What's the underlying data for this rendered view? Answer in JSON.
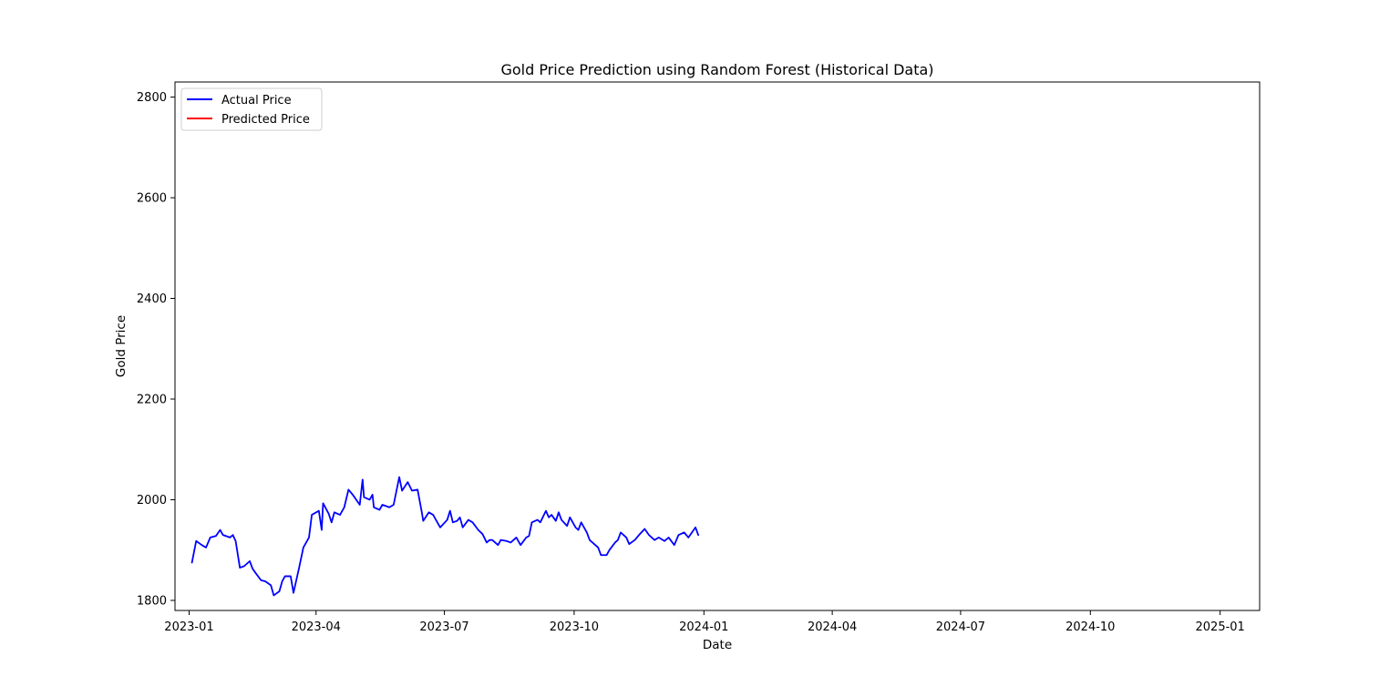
{
  "chart_data": {
    "type": "line",
    "title": "Gold Price Prediction using Random Forest (Historical Data)",
    "xlabel": "Date",
    "ylabel": "Gold Price",
    "xlim": [
      "2022-12-22",
      "2025-01-29"
    ],
    "ylim": [
      1780,
      2830
    ],
    "x_ticks": [
      {
        "date": "2023-01-01",
        "label": "2023-01"
      },
      {
        "date": "2023-04-01",
        "label": "2023-04"
      },
      {
        "date": "2023-07-01",
        "label": "2023-07"
      },
      {
        "date": "2023-10-01",
        "label": "2023-10"
      },
      {
        "date": "2024-01-01",
        "label": "2024-01"
      },
      {
        "date": "2024-04-01",
        "label": "2024-04"
      },
      {
        "date": "2024-07-01",
        "label": "2024-07"
      },
      {
        "date": "2024-10-01",
        "label": "2024-10"
      },
      {
        "date": "2025-01-01",
        "label": "2025-01"
      }
    ],
    "y_ticks": [
      1800,
      2000,
      2200,
      2400,
      2600,
      2800
    ],
    "grid": false,
    "legend_position": "upper-left",
    "series": [
      {
        "name": "Actual Price",
        "color": "#0000ff",
        "points": [
          [
            "2023-01-03",
            1875
          ],
          [
            "2023-01-06",
            1918
          ],
          [
            "2023-01-10",
            1910
          ],
          [
            "2023-01-13",
            1905
          ],
          [
            "2023-01-16",
            1925
          ],
          [
            "2023-01-20",
            1928
          ],
          [
            "2023-01-23",
            1940
          ],
          [
            "2023-01-25",
            1930
          ],
          [
            "2023-01-30",
            1925
          ],
          [
            "2023-02-01",
            1930
          ],
          [
            "2023-02-03",
            1918
          ],
          [
            "2023-02-06",
            1865
          ],
          [
            "2023-02-09",
            1868
          ],
          [
            "2023-02-13",
            1878
          ],
          [
            "2023-02-15",
            1863
          ],
          [
            "2023-02-17",
            1855
          ],
          [
            "2023-02-21",
            1840
          ],
          [
            "2023-02-24",
            1838
          ],
          [
            "2023-02-28",
            1830
          ],
          [
            "2023-03-02",
            1810
          ],
          [
            "2023-03-06",
            1818
          ],
          [
            "2023-03-08",
            1838
          ],
          [
            "2023-03-10",
            1848
          ],
          [
            "2023-03-14",
            1848
          ],
          [
            "2023-03-16",
            1815
          ],
          [
            "2023-03-20",
            1865
          ],
          [
            "2023-03-23",
            1905
          ],
          [
            "2023-03-27",
            1925
          ],
          [
            "2023-03-29",
            1970
          ],
          [
            "2023-04-03",
            1978
          ],
          [
            "2023-04-05",
            1940
          ],
          [
            "2023-04-06",
            1993
          ],
          [
            "2023-04-10",
            1972
          ],
          [
            "2023-04-12",
            1955
          ],
          [
            "2023-04-14",
            1975
          ],
          [
            "2023-04-18",
            1970
          ],
          [
            "2023-04-21",
            1985
          ],
          [
            "2023-04-24",
            2020
          ],
          [
            "2023-04-27",
            2010
          ],
          [
            "2023-05-02",
            1990
          ],
          [
            "2023-05-04",
            2040
          ],
          [
            "2023-05-05",
            2005
          ],
          [
            "2023-05-09",
            2000
          ],
          [
            "2023-05-11",
            2010
          ],
          [
            "2023-05-12",
            1985
          ],
          [
            "2023-05-16",
            1980
          ],
          [
            "2023-05-18",
            1990
          ],
          [
            "2023-05-23",
            1985
          ],
          [
            "2023-05-26",
            1990
          ],
          [
            "2023-05-30",
            2045
          ],
          [
            "2023-06-01",
            2018
          ],
          [
            "2023-06-05",
            2035
          ],
          [
            "2023-06-08",
            2018
          ],
          [
            "2023-06-12",
            2020
          ],
          [
            "2023-06-15",
            1975
          ],
          [
            "2023-06-16",
            1958
          ],
          [
            "2023-06-20",
            1975
          ],
          [
            "2023-06-23",
            1970
          ],
          [
            "2023-06-26",
            1955
          ],
          [
            "2023-06-28",
            1945
          ],
          [
            "2023-07-03",
            1960
          ],
          [
            "2023-07-05",
            1978
          ],
          [
            "2023-07-07",
            1955
          ],
          [
            "2023-07-10",
            1958
          ],
          [
            "2023-07-12",
            1965
          ],
          [
            "2023-07-14",
            1945
          ],
          [
            "2023-07-18",
            1960
          ],
          [
            "2023-07-21",
            1955
          ],
          [
            "2023-07-25",
            1940
          ],
          [
            "2023-07-28",
            1932
          ],
          [
            "2023-07-31",
            1915
          ],
          [
            "2023-08-02",
            1920
          ],
          [
            "2023-08-04",
            1920
          ],
          [
            "2023-08-08",
            1910
          ],
          [
            "2023-08-10",
            1920
          ],
          [
            "2023-08-14",
            1918
          ],
          [
            "2023-08-17",
            1915
          ],
          [
            "2023-08-21",
            1925
          ],
          [
            "2023-08-24",
            1910
          ],
          [
            "2023-08-28",
            1925
          ],
          [
            "2023-08-30",
            1928
          ],
          [
            "2023-09-01",
            1955
          ],
          [
            "2023-09-05",
            1960
          ],
          [
            "2023-09-07",
            1955
          ],
          [
            "2023-09-11",
            1978
          ],
          [
            "2023-09-13",
            1965
          ],
          [
            "2023-09-15",
            1970
          ],
          [
            "2023-09-18",
            1958
          ],
          [
            "2023-09-20",
            1975
          ],
          [
            "2023-09-22",
            1960
          ],
          [
            "2023-09-26",
            1948
          ],
          [
            "2023-09-28",
            1965
          ],
          [
            "2023-10-02",
            1945
          ],
          [
            "2023-10-04",
            1940
          ],
          [
            "2023-10-06",
            1955
          ],
          [
            "2023-10-10",
            1935
          ],
          [
            "2023-10-12",
            1920
          ],
          [
            "2023-10-16",
            1910
          ],
          [
            "2023-10-18",
            1905
          ],
          [
            "2023-10-20",
            1890
          ],
          [
            "2023-10-24",
            1890
          ],
          [
            "2023-10-26",
            1900
          ],
          [
            "2023-10-30",
            1915
          ],
          [
            "2023-11-01",
            1920
          ],
          [
            "2023-11-03",
            1935
          ],
          [
            "2023-11-07",
            1925
          ],
          [
            "2023-11-09",
            1912
          ],
          [
            "2023-11-13",
            1920
          ],
          [
            "2023-11-16",
            1930
          ],
          [
            "2023-11-20",
            1942
          ],
          [
            "2023-11-23",
            1930
          ],
          [
            "2023-11-27",
            1920
          ],
          [
            "2023-11-30",
            1925
          ],
          [
            "2023-12-04",
            1918
          ],
          [
            "2023-12-07",
            1925
          ],
          [
            "2023-12-11",
            1910
          ],
          [
            "2023-12-14",
            1930
          ],
          [
            "2023-12-18",
            1935
          ],
          [
            "2023-12-21",
            1925
          ],
          [
            "2023-12-26",
            1945
          ],
          [
            "2023-12-28",
            1930
          ]
        ]
      },
      {
        "name": "Predicted Price",
        "color": "#ff0000",
        "points": []
      }
    ]
  }
}
